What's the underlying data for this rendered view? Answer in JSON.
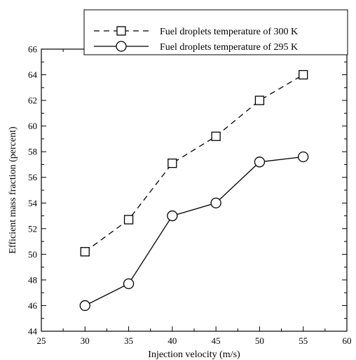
{
  "chart_data": {
    "type": "line",
    "xlabel": "Injection velocity (m/s)",
    "ylabel": "Efficient mass fraction (percent)",
    "xlim": [
      25,
      60
    ],
    "ylim": [
      44,
      66
    ],
    "xticks": [
      "25",
      "30",
      "35",
      "40",
      "45",
      "50",
      "55",
      "60"
    ],
    "yticks": [
      "44",
      "46",
      "48",
      "50",
      "52",
      "54",
      "56",
      "58",
      "60",
      "62",
      "64",
      "66"
    ],
    "grid": false,
    "legend_position": "top-right",
    "series": [
      {
        "name": "Fuel droplets temperature of 300 K",
        "marker": "square",
        "line_style": "dashed",
        "x": [
          30,
          35,
          40,
          45,
          50,
          55
        ],
        "y": [
          50.2,
          52.7,
          57.1,
          59.2,
          62.0,
          64.0
        ]
      },
      {
        "name": "Fuel droplets temperature of 295 K",
        "marker": "circle",
        "line_style": "solid",
        "x": [
          30,
          35,
          40,
          45,
          50,
          55
        ],
        "y": [
          46.0,
          47.7,
          53.0,
          54.0,
          57.2,
          57.6
        ]
      }
    ]
  }
}
